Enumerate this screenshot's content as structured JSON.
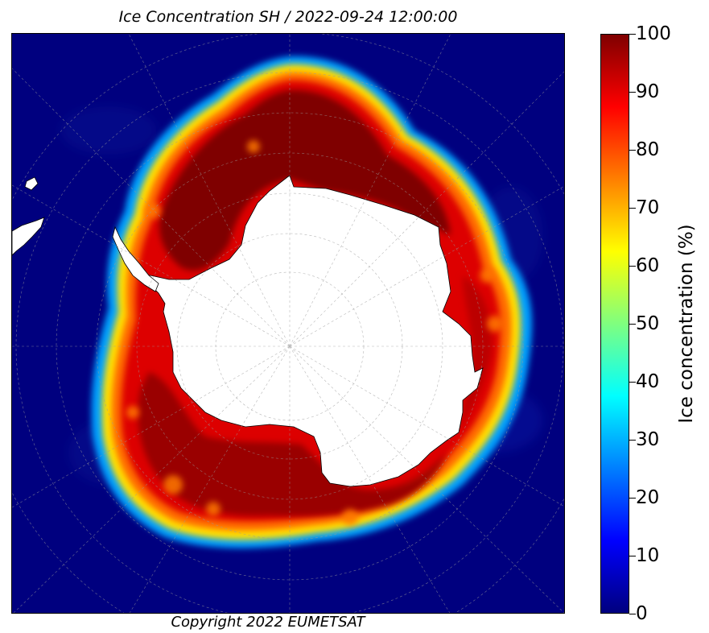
{
  "title": "Ice Concentration SH / 2022-09-24 12:00:00",
  "copyright": "Copyright 2022 EUMETSAT",
  "colorbar": {
    "label": "Ice concentration (%)",
    "ticks": [
      "0",
      "10",
      "20",
      "30",
      "40",
      "50",
      "60",
      "70",
      "80",
      "90",
      "100"
    ],
    "colormap": [
      "#00007f",
      "#0000ff",
      "#007fff",
      "#00ffff",
      "#7fff7f",
      "#ffff00",
      "#ff7f00",
      "#ff0000",
      "#7f0000"
    ]
  },
  "map": {
    "projection": "polar stereographic (south pole)",
    "ocean_color": "#00007f",
    "ice_edge_color": "#ffff00",
    "pack_ice_color": "#cc0000",
    "land_color": "#ffffff",
    "graticule": true
  }
}
